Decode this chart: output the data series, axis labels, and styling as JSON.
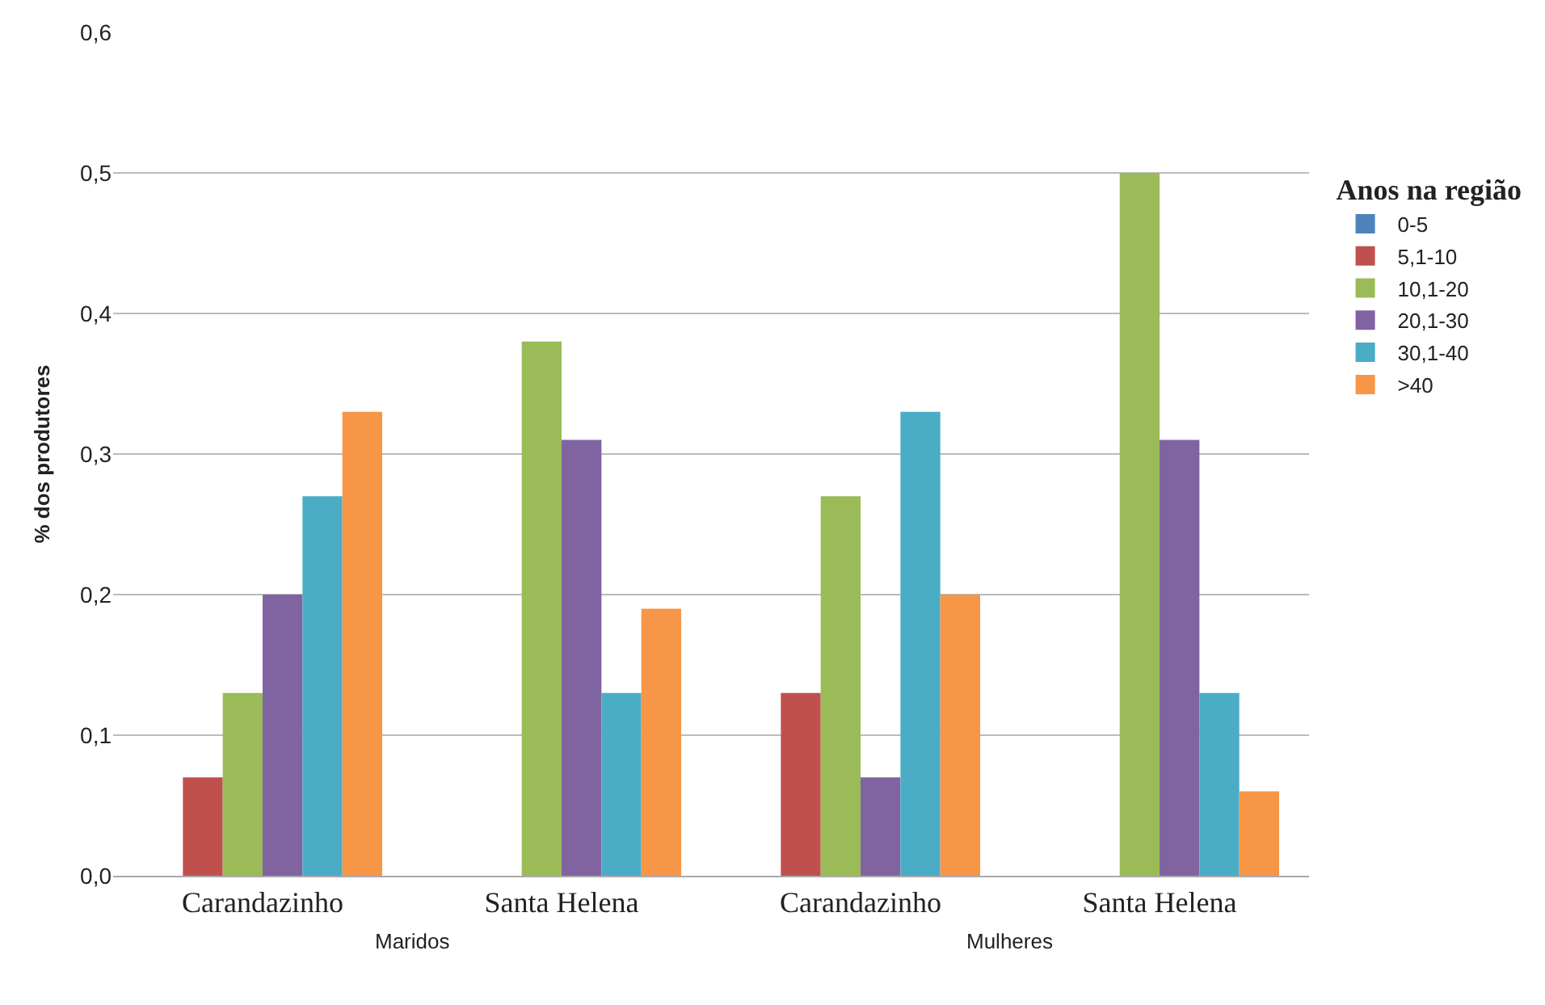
{
  "chart_data": {
    "type": "bar",
    "ylabel": "% dos produtores",
    "legend_title": "Anos na região",
    "categories": [
      "Carandazinho",
      "Santa Helena",
      "Carandazinho",
      "Santa Helena"
    ],
    "series": [
      {
        "name": "0-5",
        "color": "#4f81bd",
        "values": [
          null,
          null,
          null,
          null
        ]
      },
      {
        "name": "5,1-10",
        "color": "#c0504d",
        "values": [
          0.07,
          null,
          0.13,
          null
        ]
      },
      {
        "name": "10,1-20",
        "color": "#9bbb59",
        "values": [
          0.13,
          0.38,
          0.27,
          0.5
        ]
      },
      {
        "name": "20,1-30",
        "color": "#8064a2",
        "values": [
          0.2,
          0.31,
          0.07,
          0.31
        ]
      },
      {
        "name": "30,1-40",
        "color": "#4bacc6",
        "values": [
          0.27,
          0.13,
          0.33,
          0.13
        ]
      },
      {
        "name": ">40",
        "color": "#f79646",
        "values": [
          0.33,
          0.19,
          0.2,
          0.06
        ]
      }
    ],
    "ylim": [
      0,
      0.6
    ],
    "yticks": [
      {
        "value": 0,
        "label": "0,0"
      },
      {
        "value": 0.1,
        "label": "0,1"
      },
      {
        "value": 0.2,
        "label": "0,2"
      },
      {
        "value": 0.3,
        "label": "0,3"
      },
      {
        "value": 0.4,
        "label": "0,4"
      },
      {
        "value": 0.5,
        "label": "0,5"
      },
      {
        "value": 0.6,
        "label": "0,6"
      }
    ],
    "grid": "y",
    "legend": "right",
    "annotations": [
      "Maridos",
      "Mulheres"
    ]
  }
}
